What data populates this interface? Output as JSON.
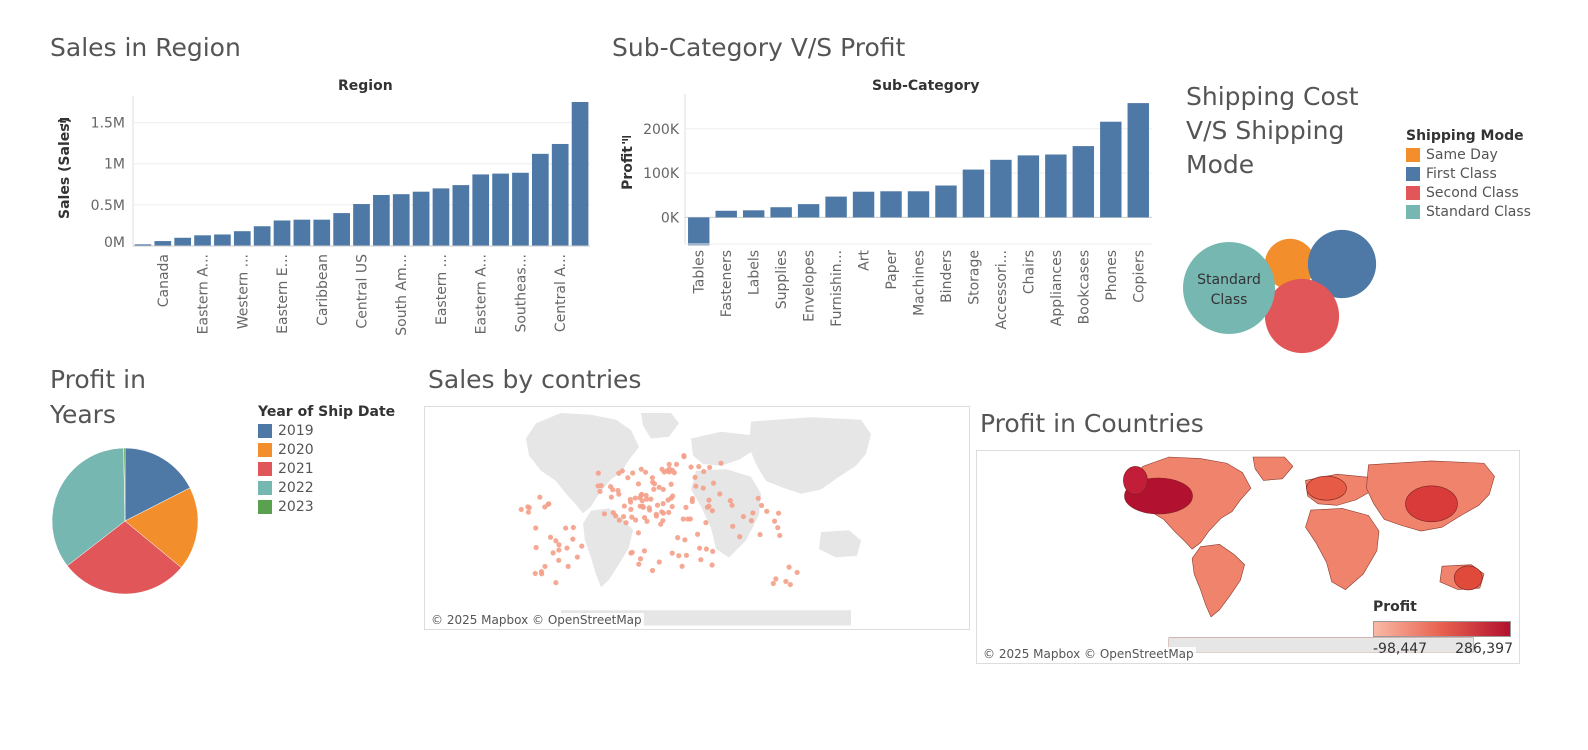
{
  "titles": {
    "sales_region": "Sales in Region",
    "subcat": "Sub-Category V/S Profit",
    "shipping": "Shipping Cost\nV/S Shipping\nMode",
    "profit_years": "Profit in\nYears",
    "sales_countries": "Sales by contries",
    "profit_countries": "Profit in Countries"
  },
  "chart_data": [
    {
      "type": "bar",
      "header": "Region",
      "ylabel": "Sales (Sales)",
      "yticks": [
        "0M",
        "0.5M",
        "1M",
        "1.5M"
      ],
      "ylim": [
        0,
        1750000
      ],
      "visible_xlabels": [
        "Canada",
        "Eastern A...",
        "Western ...",
        "Eastern E...",
        "Caribbean",
        "Central US",
        "South Am...",
        "Eastern ...",
        "Eastern A...",
        "Southeas...",
        "Central A..."
      ],
      "values": [
        20000,
        60000,
        100000,
        130000,
        140000,
        180000,
        240000,
        310000,
        320000,
        320000,
        400000,
        510000,
        620000,
        630000,
        660000,
        700000,
        740000,
        870000,
        880000,
        890000,
        1120000,
        1240000,
        1750000
      ]
    },
    {
      "type": "bar",
      "header": "Sub-Category",
      "ylabel": "Profit",
      "yticks": [
        "0K",
        "100K",
        "200K"
      ],
      "ylim": [
        -60000,
        265000
      ],
      "categories": [
        "Tables",
        "Fasteners",
        "Labels",
        "Supplies",
        "Envelopes",
        "Furnishin...",
        "Art",
        "Paper",
        "Machines",
        "Binders",
        "Storage",
        "Accessori...",
        "Chairs",
        "Appliances",
        "Bookcases",
        "Phones",
        "Copiers"
      ],
      "values": [
        -63000,
        15000,
        16000,
        23000,
        30000,
        47000,
        58000,
        59000,
        59000,
        72000,
        108000,
        130000,
        140000,
        142000,
        161000,
        216000,
        258000
      ]
    },
    {
      "type": "bubble",
      "legend_title": "Shipping Mode",
      "label": "Standard\nClass",
      "series": [
        {
          "name": "Same Day",
          "color": "#f28e2b",
          "relative_size": 0.3
        },
        {
          "name": "First Class",
          "color": "#4e79a7",
          "relative_size": 0.55
        },
        {
          "name": "Second Class",
          "color": "#e15759",
          "relative_size": 0.65
        },
        {
          "name": "Standard Class",
          "color": "#76b7b2",
          "relative_size": 1.0
        }
      ]
    },
    {
      "type": "pie",
      "legend_title": "Year of Ship Date",
      "slices": [
        {
          "name": "2019",
          "value": 17.5,
          "color": "#4e79a7"
        },
        {
          "name": "2020",
          "value": 18.5,
          "color": "#f28e2b"
        },
        {
          "name": "2021",
          "value": 28.5,
          "color": "#e15759"
        },
        {
          "name": "2022",
          "value": 35.2,
          "color": "#76b7b2"
        },
        {
          "name": "2023",
          "value": 0.3,
          "color": "#59a14f"
        }
      ]
    }
  ],
  "maps": {
    "attribution": "© 2025 Mapbox © OpenStreetMap",
    "profit_legend_title": "Profit",
    "profit_min": "-98,447",
    "profit_max": "286,397"
  },
  "colors": {
    "bar": "#4e79a7",
    "dot": "#f4a08a",
    "land": "#e6e6e6",
    "profit_low": "#f9b9a7",
    "profit_high": "#b2112f"
  }
}
